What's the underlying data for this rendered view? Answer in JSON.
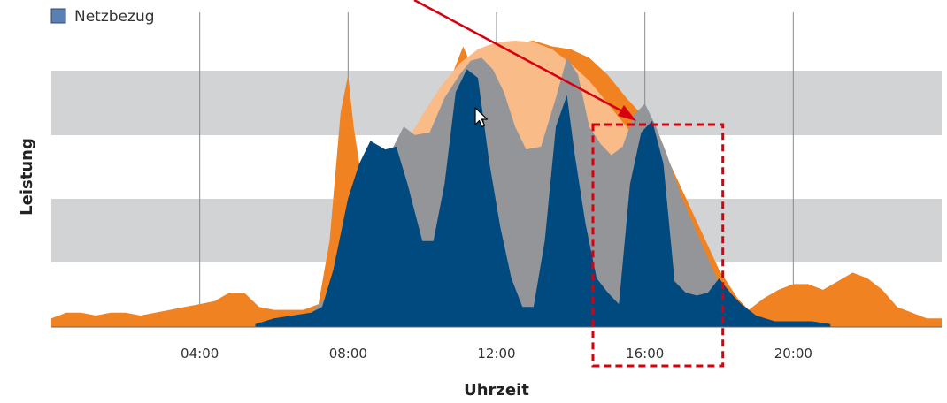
{
  "chart_data": {
    "type": "area",
    "title": "",
    "xlabel": "Uhrzeit",
    "ylabel": "Leistung",
    "x_unit": "hours",
    "xlim": [
      0,
      24
    ],
    "ylim": [
      0,
      100
    ],
    "grid": {
      "vertical": true,
      "horizontal_bands": true
    },
    "legend": {
      "position": "top-left",
      "entries": [
        "Netzbezug"
      ]
    },
    "x_ticks": [
      {
        "value": 4,
        "label": "04:00"
      },
      {
        "value": 8,
        "label": "08:00"
      },
      {
        "value": 12,
        "label": "12:00"
      },
      {
        "value": 16,
        "label": "16:00"
      },
      {
        "value": 20,
        "label": "20:00"
      }
    ],
    "series": [
      {
        "color": "#F08221",
        "x": [
          0,
          0.4,
          0.8,
          1.2,
          1.6,
          2.0,
          2.4,
          2.8,
          3.2,
          3.6,
          4.0,
          4.4,
          4.8,
          5.2,
          5.6,
          6.0,
          6.4,
          6.8,
          7.2,
          7.5,
          7.8,
          8.0,
          8.15,
          8.5,
          8.8,
          9.2,
          9.6,
          10.0,
          10.4,
          10.8,
          11.1,
          11.3,
          11.6,
          12.0,
          12.5,
          13.0,
          13.5,
          14.0,
          14.5,
          15.0,
          15.5,
          16.0,
          16.5,
          17.0,
          17.5,
          18.0,
          18.5,
          18.8,
          19.2,
          19.6,
          20.0,
          20.4,
          20.8,
          21.2,
          21.6,
          22.0,
          22.4,
          22.8,
          23.2,
          23.6,
          24.0
        ],
        "values": [
          3,
          5,
          5,
          4,
          5,
          5,
          4,
          5,
          6,
          7,
          8,
          9,
          12,
          12,
          7,
          6,
          6,
          6,
          8,
          30,
          75,
          88,
          70,
          40,
          50,
          55,
          63,
          72,
          80,
          88,
          98,
          92,
          97,
          98,
          99,
          100,
          98,
          97,
          94,
          88,
          80,
          73,
          62,
          48,
          34,
          20,
          10,
          6,
          10,
          13,
          15,
          15,
          13,
          16,
          19,
          17,
          13,
          7,
          5,
          3,
          3
        ]
      },
      {
        "color": "#F9BC89",
        "x": [
          6.5,
          7.0,
          7.5,
          8.0,
          8.5,
          9.0,
          9.5,
          10.0,
          10.5,
          11.0,
          11.5,
          12.0,
          12.5,
          13.0,
          13.5,
          14.0,
          14.5,
          15.0,
          15.5,
          16.0,
          16.5,
          17.0,
          17.5,
          18.0,
          18.5,
          19.0
        ],
        "values": [
          2,
          5,
          12,
          22,
          35,
          49,
          63,
          74,
          84,
          92,
          97,
          99.5,
          100,
          99.5,
          97,
          92,
          86,
          78,
          70,
          61,
          50,
          38,
          26,
          15,
          7,
          2
        ]
      },
      {
        "color": "#939598",
        "x": [
          6.5,
          7.0,
          7.5,
          8.0,
          8.3,
          8.7,
          9.1,
          9.5,
          9.8,
          10.2,
          10.6,
          11.0,
          11.3,
          11.6,
          11.9,
          12.2,
          12.5,
          12.8,
          13.2,
          13.6,
          13.9,
          14.2,
          14.5,
          14.8,
          15.1,
          15.4,
          15.7,
          16.0,
          16.3,
          16.6,
          17.0,
          17.5,
          18.0,
          18.5,
          19.0
        ],
        "values": [
          2,
          5,
          12,
          22,
          35,
          49,
          60,
          70,
          67,
          68,
          80,
          88,
          93,
          94,
          90,
          82,
          70,
          62,
          63,
          80,
          94,
          88,
          70,
          64,
          60,
          63,
          74,
          78,
          70,
          60,
          45,
          30,
          15,
          7,
          2
        ]
      },
      {
        "name": "Netzbezug",
        "color": "#004A7F",
        "x": [
          5.5,
          6.0,
          6.5,
          7.0,
          7.3,
          7.6,
          8.0,
          8.3,
          8.6,
          9.0,
          9.3,
          9.6,
          10.0,
          10.3,
          10.6,
          10.9,
          11.2,
          11.5,
          11.8,
          12.1,
          12.4,
          12.7,
          13.0,
          13.3,
          13.6,
          13.9,
          14.1,
          14.4,
          14.7,
          15.0,
          15.3,
          15.6,
          15.9,
          16.2,
          16.5,
          16.8,
          17.1,
          17.4,
          17.7,
          18.0,
          18.3,
          18.6,
          19.0,
          19.5,
          20.0,
          20.5,
          21.0
        ],
        "values": [
          1,
          3,
          4,
          5,
          7,
          20,
          45,
          57,
          65,
          62,
          63,
          50,
          30,
          30,
          50,
          82,
          90,
          87,
          58,
          35,
          17,
          7,
          7,
          30,
          70,
          81,
          61,
          36,
          17,
          12,
          8,
          50,
          68,
          72,
          57,
          16,
          12,
          11,
          12,
          17,
          12,
          8,
          4,
          2,
          2,
          2,
          1
        ]
      }
    ],
    "annotations": {
      "arrow_color": "#D7000F",
      "highlight_box": {
        "x_range": [
          14.6,
          18.1
        ],
        "style": "dashed",
        "color": "#D7000F"
      }
    }
  }
}
